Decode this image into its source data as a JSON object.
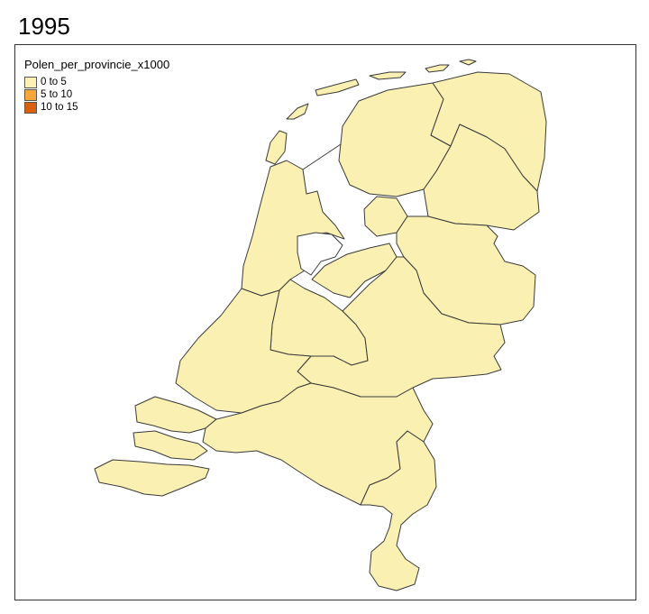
{
  "title": "1995",
  "legend": {
    "title": "Polen_per_provincie_x1000",
    "classes": [
      {
        "label": "0 to 5",
        "color": "#FFF0B3"
      },
      {
        "label": "5 to 10",
        "color": "#F8A83A"
      },
      {
        "label": "10 to 15",
        "color": "#D9600F"
      }
    ]
  },
  "map": {
    "fill_color": "#FAF0B2",
    "provinces": [
      {
        "name": "Groningen",
        "class": "0 to 5"
      },
      {
        "name": "Friesland",
        "class": "0 to 5"
      },
      {
        "name": "Drenthe",
        "class": "0 to 5"
      },
      {
        "name": "Overijssel",
        "class": "0 to 5"
      },
      {
        "name": "Flevoland",
        "class": "0 to 5"
      },
      {
        "name": "Gelderland",
        "class": "0 to 5"
      },
      {
        "name": "Utrecht",
        "class": "0 to 5"
      },
      {
        "name": "Noord-Holland",
        "class": "0 to 5"
      },
      {
        "name": "Zuid-Holland",
        "class": "0 to 5"
      },
      {
        "name": "Zeeland",
        "class": "0 to 5"
      },
      {
        "name": "Noord-Brabant",
        "class": "0 to 5"
      },
      {
        "name": "Limburg",
        "class": "0 to 5"
      }
    ]
  }
}
